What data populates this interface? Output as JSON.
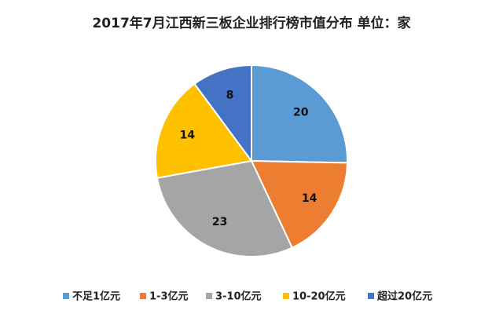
{
  "chart_data": {
    "type": "pie",
    "title": "2017年7月江西新三板企业排行榜市值分布 单位：家",
    "categories": [
      "不足1亿元",
      "1-3亿元",
      "3-10亿元",
      "10-20亿元",
      "超过20亿元"
    ],
    "values": [
      20,
      14,
      23,
      14,
      8
    ],
    "colors": [
      "#5b9bd5",
      "#ed7d31",
      "#a5a5a5",
      "#ffc000",
      "#4472c4"
    ],
    "legend": "bottom"
  }
}
